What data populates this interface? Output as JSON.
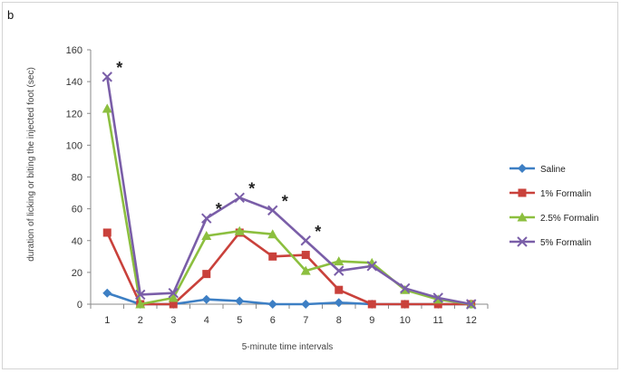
{
  "panel_label": "b",
  "chart_data": {
    "type": "line",
    "title": "",
    "xlabel": "5-minute time intervals",
    "ylabel": "duration of licking or biting the injected foot (sec)",
    "x": [
      1,
      2,
      3,
      4,
      5,
      6,
      7,
      8,
      9,
      10,
      11,
      12
    ],
    "ylim": [
      0,
      160
    ],
    "yticks": [
      0,
      20,
      40,
      60,
      80,
      100,
      120,
      140,
      160
    ],
    "grid": false,
    "legend_position": "right",
    "series": [
      {
        "name": "Saline",
        "color": "#3d7fc4",
        "marker": "diamond",
        "values": [
          7,
          0,
          0,
          3,
          2,
          0,
          0,
          1,
          0,
          0,
          0,
          0
        ]
      },
      {
        "name": "1% Formalin",
        "color": "#c9413b",
        "marker": "square",
        "values": [
          45,
          0,
          0,
          19,
          45,
          30,
          31,
          9,
          0,
          0,
          0,
          0
        ]
      },
      {
        "name": "2.5% Formalin",
        "color": "#8cbf3f",
        "marker": "triangle",
        "values": [
          123,
          0,
          4,
          43,
          46,
          44,
          21,
          27,
          26,
          9,
          3,
          0
        ]
      },
      {
        "name": "5% Formalin",
        "color": "#7a5ea8",
        "marker": "x",
        "values": [
          143,
          6,
          7,
          54,
          67,
          59,
          40,
          21,
          24,
          10,
          4,
          0
        ]
      }
    ],
    "annotations": [
      {
        "text": "*",
        "x": 1,
        "y": 143
      },
      {
        "text": "*",
        "x": 4,
        "y": 54
      },
      {
        "text": "*",
        "x": 5,
        "y": 67
      },
      {
        "text": "*",
        "x": 6,
        "y": 59
      },
      {
        "text": "*",
        "x": 7,
        "y": 40
      }
    ]
  }
}
